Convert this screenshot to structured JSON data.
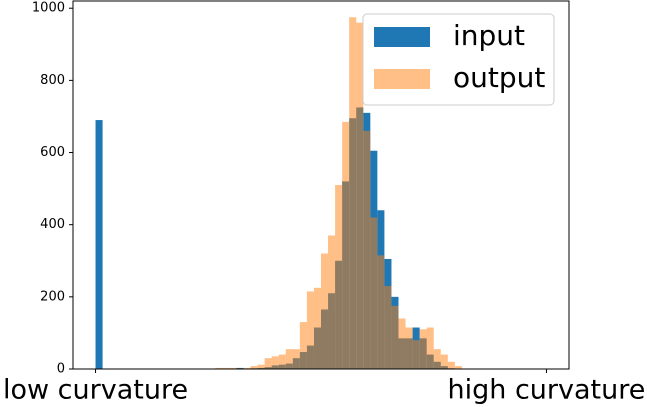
{
  "chart_data": {
    "type": "histogram",
    "bins": [
      0,
      0.015625,
      0.03125,
      0.046875,
      0.0625,
      0.078125,
      0.09375,
      0.109375,
      0.125,
      0.140625,
      0.15625,
      0.171875,
      0.1875,
      0.203125,
      0.21875,
      0.234375,
      0.25,
      0.265625,
      0.28125,
      0.296875,
      0.3125,
      0.328125,
      0.34375,
      0.359375,
      0.375,
      0.390625,
      0.40625,
      0.421875,
      0.4375,
      0.453125,
      0.46875,
      0.484375,
      0.5,
      0.515625,
      0.53125,
      0.546875,
      0.5625,
      0.578125,
      0.59375,
      0.609375,
      0.625,
      0.640625,
      0.65625,
      0.671875,
      0.6875,
      0.703125,
      0.71875,
      0.734375,
      0.75,
      0.765625,
      0.78125,
      0.796875,
      0.8125,
      0.828125,
      0.84375,
      0.859375,
      0.875,
      0.890625,
      0.90625,
      0.921875,
      0.9375,
      0.953125,
      0.96875,
      0.984375,
      1
    ],
    "series": [
      {
        "name": "input",
        "color": "#1f77b4",
        "opacity": 1,
        "values": [
          690,
          0,
          0,
          0,
          0,
          0,
          0,
          0,
          0,
          0,
          0,
          0,
          0,
          0,
          0,
          0,
          0,
          0,
          0,
          0,
          3,
          0,
          2,
          3,
          5,
          10,
          12,
          15,
          30,
          47,
          65,
          115,
          165,
          210,
          300,
          520,
          695,
          725,
          710,
          605,
          440,
          305,
          200,
          85,
          85,
          115,
          85,
          40,
          20,
          8,
          2,
          0,
          0,
          0,
          0,
          0,
          0,
          0,
          0,
          0,
          0,
          0,
          0,
          0
        ]
      },
      {
        "name": "output",
        "color": "#ff7f0e",
        "opacity": 0.5,
        "values": [
          0,
          0,
          0,
          0,
          0,
          0,
          0,
          0,
          0,
          0,
          0,
          0,
          0,
          0,
          0,
          0,
          0,
          3,
          3,
          3,
          2,
          3,
          8,
          12,
          30,
          35,
          40,
          55,
          55,
          130,
          215,
          225,
          320,
          370,
          510,
          685,
          975,
          960,
          660,
          420,
          315,
          230,
          175,
          140,
          115,
          80,
          110,
          115,
          55,
          40,
          20,
          8,
          0,
          0,
          0,
          0,
          0,
          0,
          0,
          0,
          0,
          0,
          0,
          0
        ]
      }
    ],
    "xlim": [
      -0.05,
      1.05
    ],
    "xticks": [
      {
        "value": 0,
        "label": "low curvature"
      },
      {
        "value": 1,
        "label": "high curvature"
      }
    ],
    "ylim": [
      0,
      1020
    ],
    "yticks": [
      0,
      200,
      400,
      600,
      800,
      1000
    ],
    "legend": "upper right"
  }
}
